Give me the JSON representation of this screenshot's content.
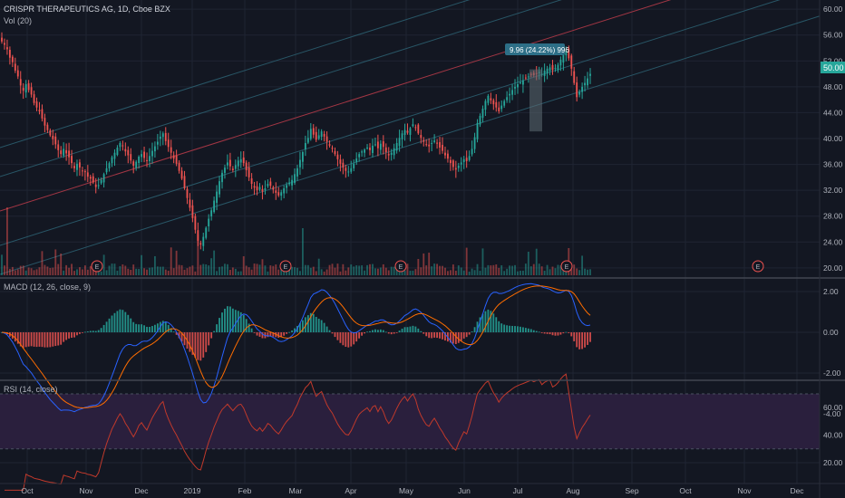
{
  "header": {
    "title": "CRISPR THERAPEUTICS AG, 1D, Cboe BZX",
    "volume_label": "Vol (20)"
  },
  "colors": {
    "background": "#131722",
    "up": "#26a69a",
    "down": "#ef5350",
    "grid": "#1f2433",
    "channel_mid": "#b23a48",
    "channel_lines": "#2b5d6e",
    "macd_line": "#2962ff",
    "signal_line": "#ff6d00",
    "rsi_line": "#c0392b",
    "rsi_band": "#2a1f3d",
    "axis_text": "#b2b5be",
    "price_tag": "#26a69a"
  },
  "chart_data": [
    {
      "type": "candlestick",
      "title": "CRISPR THERAPEUTICS AG, 1D, Cboe BZX",
      "x_ticks": [
        "Oct",
        "Nov",
        "Dec",
        "2019",
        "Feb",
        "Mar",
        "Apr",
        "May",
        "Jun",
        "Jul",
        "Aug",
        "Sep",
        "Oct",
        "Nov",
        "Dec"
      ],
      "y_ticks": [
        "60.00",
        "56.00",
        "52.00",
        "48.00",
        "44.00",
        "40.00",
        "36.00",
        "32.00",
        "28.00",
        "24.00",
        "20.00"
      ],
      "ylim": [
        19,
        61
      ],
      "last_price": "50.00",
      "annotation": "9.96 (24.22%) 996",
      "earnings_markers": [
        "E",
        "E",
        "E",
        "E",
        "E"
      ],
      "closes": [
        55,
        54.5,
        53.8,
        52.5,
        51.8,
        50.5,
        49.6,
        48.2,
        47.4,
        48.4,
        47.5,
        46.8,
        45.5,
        44.8,
        44.2,
        43.1,
        42.0,
        41.3,
        40.5,
        39.9,
        39.1,
        38.2,
        37.6,
        38.4,
        37.7,
        37.1,
        36.2,
        35.4,
        36.1,
        35.5,
        35.0,
        34.8,
        34.1,
        33.8,
        33.2,
        32.5,
        32.8,
        33.6,
        34.5,
        35.4,
        36.2,
        37.1,
        37.8,
        38.6,
        39.3,
        38.8,
        38.0,
        37.4,
        36.6,
        35.8,
        36.4,
        37.2,
        37.6,
        37.0,
        36.5,
        37.3,
        38.1,
        38.8,
        39.5,
        40.3,
        40.8,
        39.6,
        38.7,
        37.8,
        36.9,
        36.1,
        35.0,
        33.8,
        32.3,
        30.8,
        29.3,
        27.7,
        25.9,
        24.2,
        23.6,
        24.8,
        26.2,
        27.6,
        28.9,
        30.4,
        31.8,
        33.4,
        34.7,
        35.5,
        36.3,
        35.7,
        35.1,
        35.9,
        36.6,
        36.8,
        36.2,
        35.1,
        34.0,
        33.0,
        32.4,
        32.0,
        32.5,
        31.8,
        32.3,
        33.0,
        32.7,
        32.1,
        31.6,
        31.2,
        31.7,
        32.3,
        32.8,
        33.2,
        33.6,
        34.5,
        35.4,
        36.7,
        37.9,
        39.3,
        40.1,
        41.5,
        40.6,
        39.8,
        40.5,
        41.1,
        40.3,
        39.5,
        38.9,
        38.4,
        37.6,
        36.8,
        36.1,
        35.5,
        35.0,
        34.9,
        35.4,
        36.1,
        36.9,
        37.6,
        38.0,
        38.3,
        38.6,
        38.2,
        38.9,
        39.1,
        38.5,
        39.2,
        38.7,
        37.9,
        37.4,
        37.8,
        38.5,
        39.3,
        40.1,
        40.8,
        41.3,
        40.9,
        41.6,
        42.2,
        41.7,
        40.8,
        40.1,
        39.5,
        39.0,
        38.8,
        39.3,
        39.7,
        39.2,
        38.6,
        38.1,
        37.4,
        36.9,
        36.2,
        35.6,
        35.2,
        35.8,
        36.3,
        36.8,
        36.5,
        37.3,
        38.4,
        40.2,
        42.4,
        43.5,
        44.6,
        45.8,
        46.6,
        45.9,
        45.3,
        44.8,
        44.2,
        45.1,
        45.8,
        46.4,
        46.9,
        47.5,
        48.0,
        48.4,
        48.7,
        49.0,
        49.3,
        49.6,
        49.9,
        49.8,
        50.1,
        50.3,
        50.0,
        50.5,
        50.8,
        51.0,
        50.6,
        50.9,
        51.4,
        52.2,
        53.0,
        53.6,
        52.4,
        50.8,
        48.6,
        46.4,
        47.2,
        48.0,
        48.6,
        49.3,
        50.0
      ]
    },
    {
      "type": "bar",
      "title": "Vol (20)"
    },
    {
      "type": "line",
      "title": "MACD (12, 26, close, 9)",
      "y_ticks": [
        "2.00",
        "0.00",
        "-2.00",
        "-4.00"
      ],
      "ylim": [
        -4.3,
        2.8
      ]
    },
    {
      "type": "line",
      "title": "RSI (14, close)",
      "y_ticks": [
        "60.00",
        "40.00",
        "20.00"
      ],
      "ylim": [
        16,
        76
      ],
      "bands": [
        30,
        70
      ]
    }
  ]
}
